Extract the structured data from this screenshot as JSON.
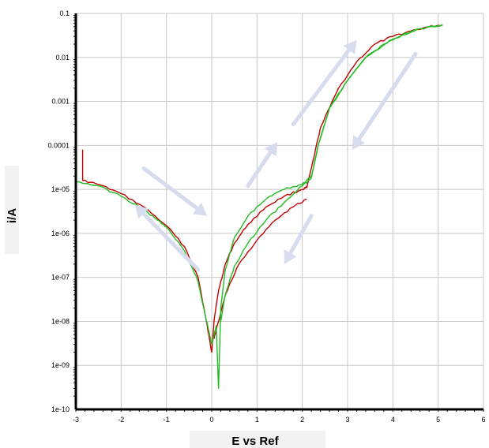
{
  "chart_data": {
    "type": "line",
    "title": "",
    "xlabel": "E vs Ref",
    "ylabel": "i/A",
    "xlim": [
      -3,
      6
    ],
    "ylim": [
      1e-10,
      0.1
    ],
    "y_scale": "log",
    "grid": true,
    "legend": "none",
    "x_ticks": [
      "-3",
      "-2",
      "-1",
      "0",
      "1",
      "2",
      "3",
      "4",
      "5",
      "6"
    ],
    "y_ticks": [
      "1e-10",
      "1e-09",
      "1e-08",
      "1e-07",
      "1e-06",
      "1e-05",
      "0.0001",
      "0.001",
      "0.01",
      "0.1"
    ],
    "colors": {
      "series_red": "#c00000",
      "series_green": "#22bb22",
      "arrows": "#d6dcee",
      "grid": "#c8c8c8"
    },
    "series": [
      {
        "color": "#c00000",
        "x": [
          -2.85,
          -2.85,
          -2.85,
          -2.5,
          -2,
          -1.5,
          -1,
          -0.6,
          -0.3,
          -0.15,
          -0.05,
          0.0,
          0.05,
          0.15,
          0.3,
          0.5,
          0.8,
          1.2,
          1.6,
          2.0,
          2.1,
          2.2,
          2.4,
          2.8,
          3.2,
          3.6,
          4.0,
          4.4,
          4.8,
          5.1
        ],
        "y": [
          8e-05,
          1.7e-05,
          1.6e-05,
          1.3e-05,
          8e-06,
          4e-06,
          1.5e-06,
          5e-07,
          1e-07,
          1.5e-08,
          4e-09,
          2e-09,
          1e-08,
          5e-08,
          2e-07,
          6e-07,
          1.6e-06,
          4e-06,
          7e-06,
          1e-05,
          1.1e-05,
          3e-05,
          0.00025,
          0.002,
          0.008,
          0.02,
          0.03,
          0.04,
          0.05,
          0.055
        ]
      },
      {
        "color": "#c00000",
        "x": [
          2.1,
          1.8,
          1.4,
          1.0,
          0.6,
          0.3,
          0.15,
          0.05
        ],
        "y": [
          6e-06,
          4e-06,
          2e-06,
          7e-07,
          2e-07,
          4e-08,
          1e-08,
          4e-09
        ]
      },
      {
        "color": "#22bb22",
        "x": [
          -3,
          -2.5,
          -2,
          -1.5,
          -1.2,
          -1,
          -0.6,
          -0.3,
          -0.15,
          0.0,
          0.1,
          0.15,
          0.2,
          0.3,
          0.5,
          0.8,
          1.2,
          1.6,
          2.0,
          2.2,
          2.35,
          2.6,
          3.0,
          3.4,
          3.8,
          4.2,
          4.6,
          5.1
        ],
        "y": [
          1.5e-05,
          1.2e-05,
          7e-06,
          3.5e-06,
          2e-06,
          1.4e-06,
          4e-07,
          8e-08,
          1.5e-08,
          3e-09,
          8e-09,
          3e-10,
          2e-08,
          1.5e-07,
          8e-07,
          2.5e-06,
          6e-06,
          1e-05,
          1.3e-05,
          2e-05,
          0.0001,
          0.0007,
          0.003,
          0.01,
          0.02,
          0.032,
          0.045,
          0.055
        ]
      },
      {
        "color": "#22bb22",
        "x": [
          5.1,
          4.6,
          4.0,
          3.4,
          3.0,
          2.6,
          2.35,
          2.2,
          2.0,
          1.6,
          1.2,
          0.8,
          0.5,
          0.3,
          0.2
        ],
        "y": [
          0.055,
          0.045,
          0.026,
          0.01,
          0.003,
          0.0007,
          0.0001,
          1.8e-05,
          1.2e-05,
          5e-06,
          2e-06,
          6e-07,
          1.8e-07,
          4e-08,
          1e-08
        ]
      }
    ],
    "annotations": [
      "arrow-down-right",
      "arrow-up-left",
      "arrow-up-right",
      "arrow-up-right",
      "arrow-down-left",
      "arrow-down-left"
    ]
  }
}
